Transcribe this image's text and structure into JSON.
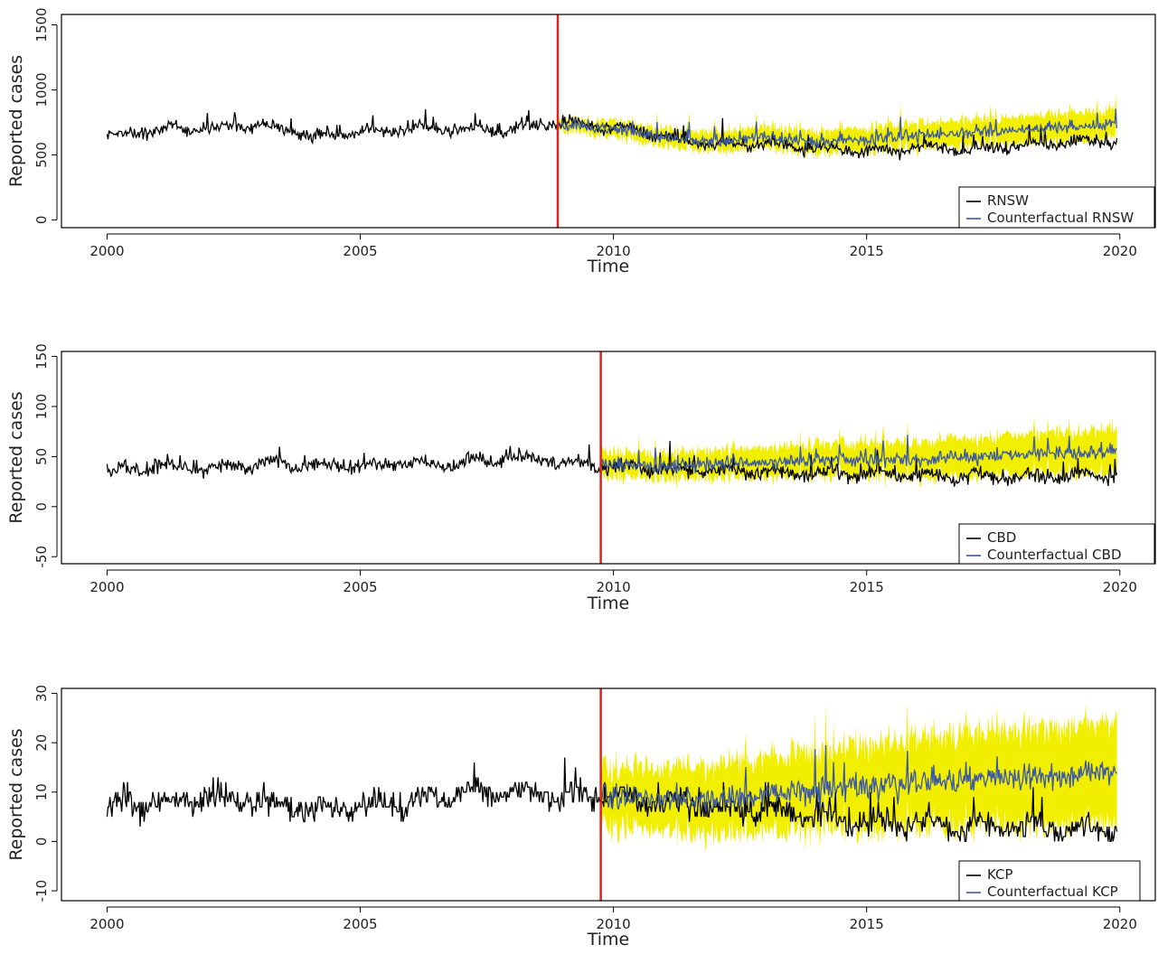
{
  "chart_data": [
    {
      "type": "line",
      "observed_name": "RNSW",
      "counterfactual_name": "Counterfactual RNSW",
      "xlabel": "Time",
      "ylabel": "Reported cases",
      "xlim": [
        1999.1,
        2020.7
      ],
      "ylim": [
        -60,
        1580
      ],
      "x_ticks": [
        "2000",
        "2005",
        "2010",
        "2015",
        "2020"
      ],
      "y_ticks": [
        "0",
        "500",
        "1000",
        "1500"
      ],
      "intervention_year": 2008.9,
      "legend_position": "bottom-right",
      "grid": false,
      "colors": {
        "observed": "#000000",
        "counterfactual": "#3a58a6",
        "interval": "#f2ee00",
        "intervention": "#e0201b"
      },
      "observed_series": {
        "x": [
          2000,
          2001,
          2002,
          2003,
          2004,
          2005,
          2006,
          2007,
          2008,
          2008.9,
          2010,
          2011,
          2012,
          2013,
          2014,
          2015,
          2016,
          2017,
          2018,
          2019,
          2020
        ],
        "y": [
          650,
          690,
          710,
          735,
          640,
          680,
          700,
          705,
          690,
          750,
          710,
          640,
          580,
          590,
          550,
          520,
          560,
          540,
          580,
          600,
          610
        ]
      },
      "counterfactual_series": {
        "x": [
          2008.9,
          2010,
          2011,
          2012,
          2013,
          2014,
          2015,
          2016,
          2017,
          2018,
          2019,
          2020
        ],
        "y": [
          730,
          700,
          640,
          600,
          640,
          600,
          620,
          650,
          670,
          690,
          720,
          740
        ]
      },
      "interval_halfwidth": [
        40,
        60,
        70,
        75,
        80,
        85,
        90,
        95,
        100,
        105,
        110,
        115
      ]
    },
    {
      "type": "line",
      "observed_name": "CBD",
      "counterfactual_name": "Counterfactual CBD",
      "xlabel": "Time",
      "ylabel": "Reported cases",
      "xlim": [
        1999.1,
        2020.7
      ],
      "ylim": [
        -57,
        155
      ],
      "x_ticks": [
        "2000",
        "2005",
        "2010",
        "2015",
        "2020"
      ],
      "y_ticks": [
        "-50",
        "0",
        "50",
        "100",
        "150"
      ],
      "intervention_year": 2009.75,
      "legend_position": "bottom-right",
      "grid": false,
      "colors": {
        "observed": "#000000",
        "counterfactual": "#3a58a6",
        "interval": "#f2ee00",
        "intervention": "#e0201b"
      },
      "observed_series": {
        "x": [
          2000,
          2001,
          2002,
          2003,
          2004,
          2005,
          2006,
          2007,
          2008,
          2009,
          2009.75,
          2011,
          2012,
          2013,
          2014,
          2015,
          2016,
          2017,
          2018,
          2019,
          2020
        ],
        "y": [
          33,
          40,
          38,
          42,
          41,
          40,
          43,
          42,
          48,
          45,
          40,
          37,
          36,
          35,
          33,
          32,
          31,
          30,
          30,
          30,
          33
        ]
      },
      "counterfactual_series": {
        "x": [
          2009.75,
          2011,
          2012,
          2013,
          2014,
          2015,
          2016,
          2017,
          2018,
          2019,
          2020
        ],
        "y": [
          42,
          40,
          42,
          44,
          46,
          47,
          48,
          50,
          52,
          54,
          55
        ]
      },
      "interval_halfwidth": [
        12,
        13,
        14,
        15,
        16,
        17,
        18,
        19,
        20,
        21,
        22
      ]
    },
    {
      "type": "line",
      "observed_name": "KCP",
      "counterfactual_name": "Counterfactual KCP",
      "xlabel": "Time",
      "ylabel": "Reported cases",
      "xlim": [
        1999.1,
        2020.7
      ],
      "ylim": [
        -12,
        31
      ],
      "x_ticks": [
        "2000",
        "2005",
        "2010",
        "2015",
        "2020"
      ],
      "y_ticks": [
        "-10",
        "0",
        "10",
        "20",
        "30"
      ],
      "intervention_year": 2009.75,
      "legend_position": "bottom-right",
      "grid": false,
      "colors": {
        "observed": "#000000",
        "counterfactual": "#3a58a6",
        "interval": "#f2ee00",
        "intervention": "#e0201b"
      },
      "observed_series": {
        "x": [
          2000,
          2001,
          2002,
          2003,
          2004,
          2005,
          2006,
          2007,
          2008,
          2009,
          2009.75,
          2011,
          2012,
          2013,
          2014,
          2015,
          2016,
          2017,
          2018,
          2019,
          2020
        ],
        "y": [
          7,
          8,
          8.5,
          8,
          6,
          7,
          8,
          10,
          10,
          9,
          9,
          8,
          7,
          6,
          5,
          4,
          3.5,
          3,
          3,
          2.5,
          2
        ]
      },
      "counterfactual_series": {
        "x": [
          2009.75,
          2011,
          2012,
          2013,
          2014,
          2015,
          2016,
          2017,
          2018,
          2019,
          2020
        ],
        "y": [
          9,
          8.5,
          8.5,
          9.5,
          10.5,
          11,
          12,
          12.5,
          13,
          13.5,
          14
        ]
      },
      "interval_halfwidth": [
        6,
        6.5,
        7,
        7.5,
        8,
        8.5,
        9,
        9.5,
        10,
        10,
        10.5
      ]
    }
  ]
}
